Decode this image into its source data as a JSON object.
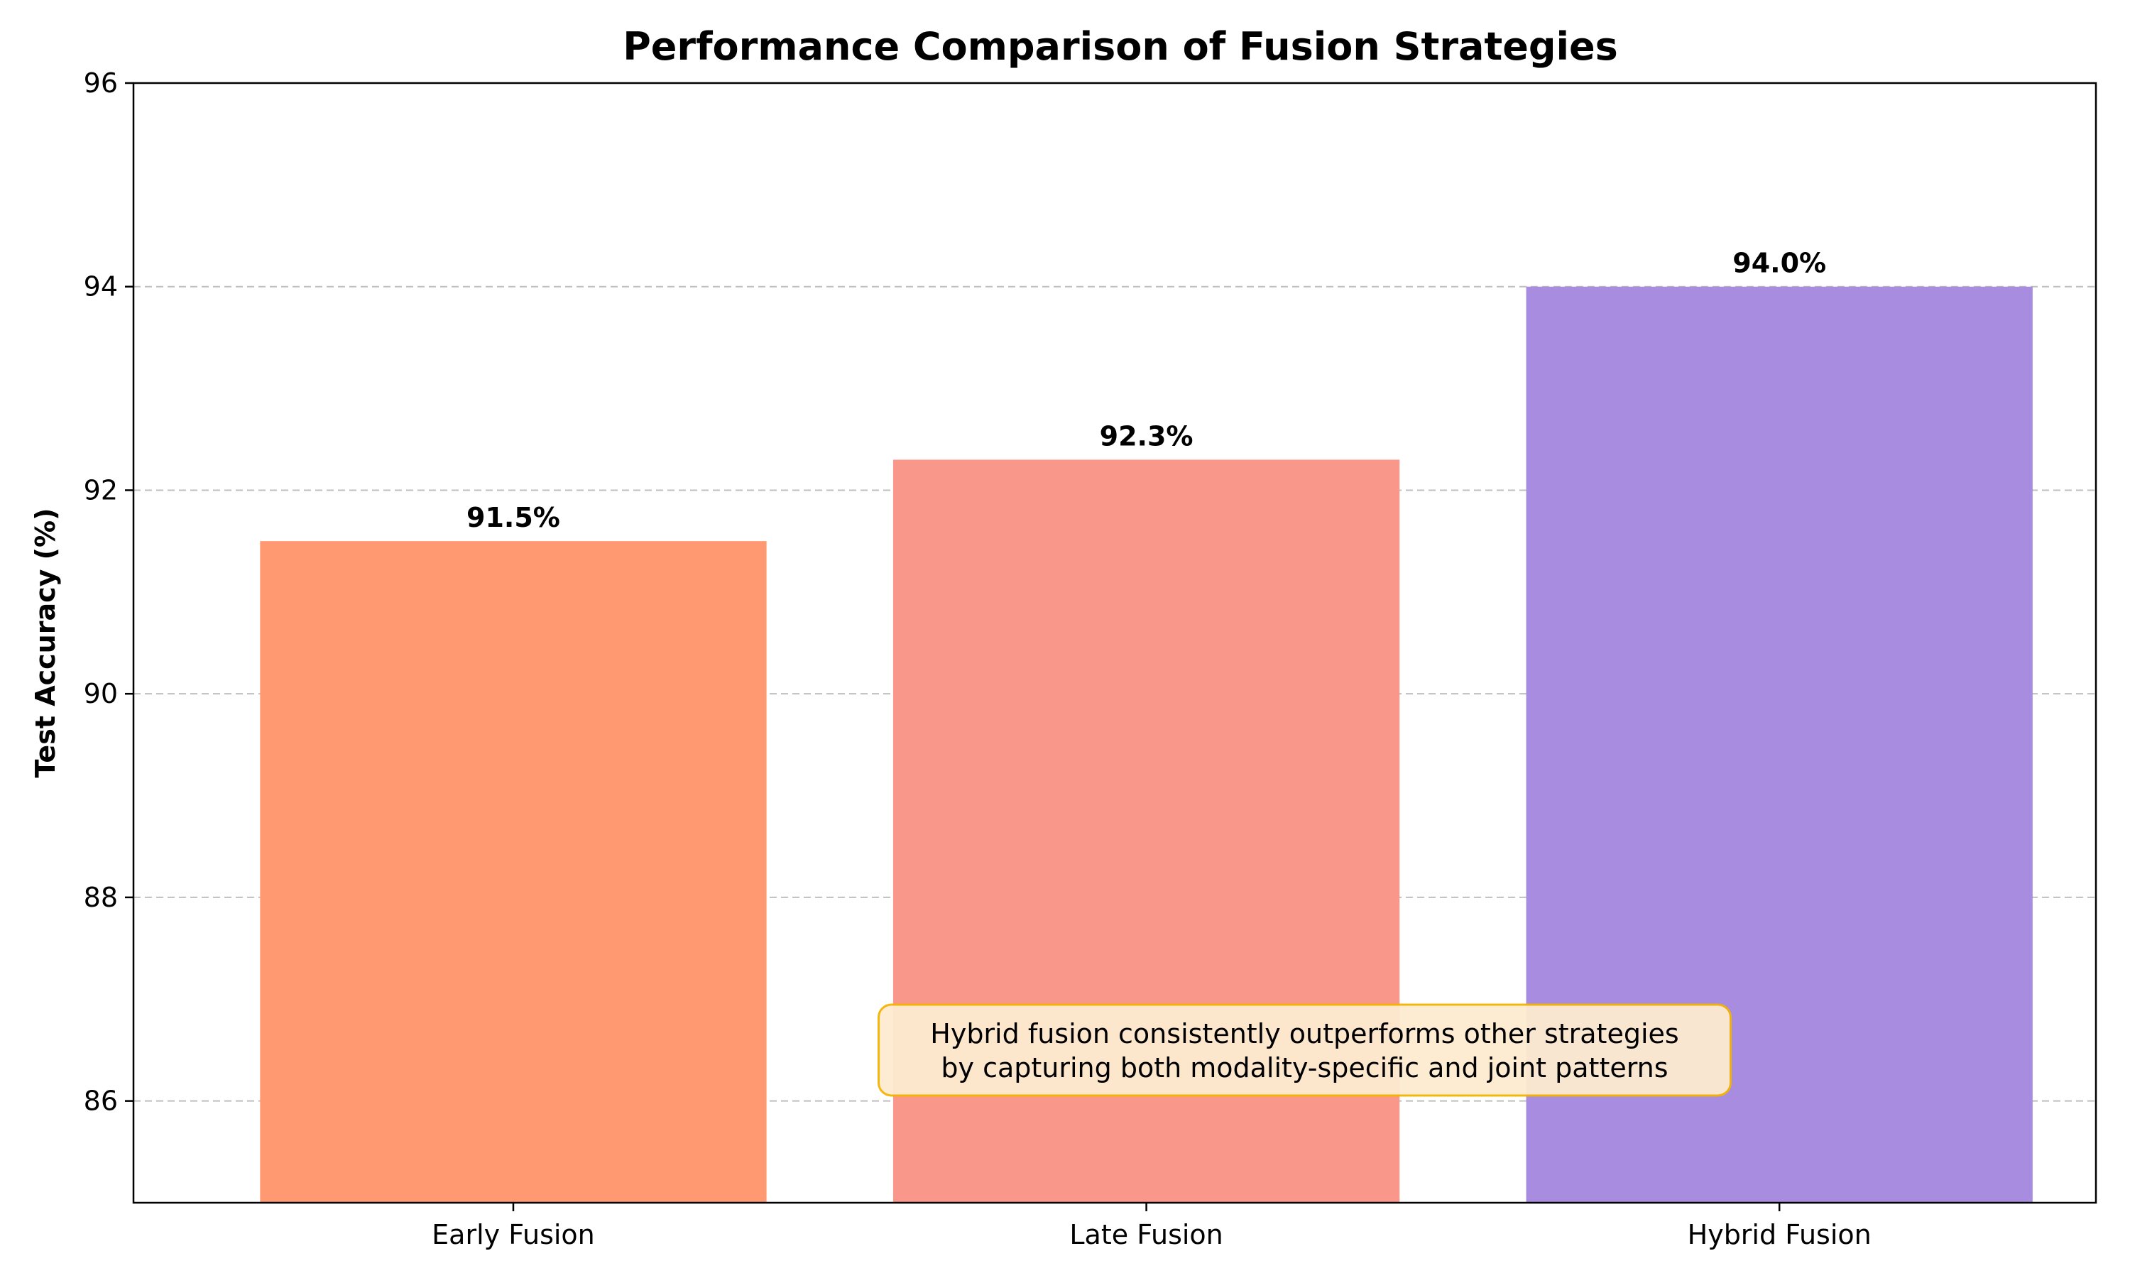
{
  "chart_data": {
    "type": "bar",
    "title": "Performance Comparison of Fusion Strategies",
    "xlabel": "",
    "ylabel": "Test Accuracy (%)",
    "categories": [
      "Early Fusion",
      "Late Fusion",
      "Hybrid Fusion"
    ],
    "values": [
      91.5,
      92.3,
      94.0
    ],
    "value_labels": [
      "91.5%",
      "92.3%",
      "94.0%"
    ],
    "bar_colors": [
      "#ff9972",
      "#fa978b",
      "#a78ce0"
    ],
    "ylim": [
      85,
      96
    ],
    "yticks": [
      86,
      88,
      90,
      92,
      94,
      96
    ],
    "grid": "horizontal dashed",
    "annotation": {
      "lines": [
        "Hybrid fusion consistently outperforms other strategies",
        "by capturing both modality-specific and joint patterns"
      ],
      "x_center": 1.25,
      "y_center": 86.5,
      "background": "#fdebd0",
      "border": "#f4b400"
    }
  }
}
